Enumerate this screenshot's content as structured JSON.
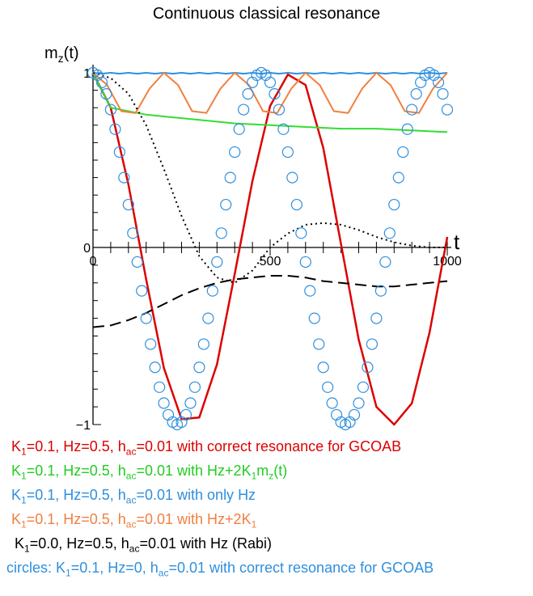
{
  "chart_data": {
    "type": "line",
    "title": "Continuous classical resonance",
    "ylabel": "m_z(t)",
    "xlabel": "t",
    "xlim": [
      0,
      1000
    ],
    "ylim": [
      -1,
      1
    ],
    "xticks": [
      "0",
      "500",
      "1000"
    ],
    "yticks": [
      "1",
      "0",
      "−1"
    ],
    "series": [
      {
        "color": "#dd0000",
        "style": "solid",
        "x": [
          0,
          50,
          100,
          150,
          200,
          250,
          300,
          350,
          400,
          450,
          500,
          550,
          600,
          650,
          700,
          750,
          800,
          850,
          900,
          950,
          1000
        ],
        "y": [
          1.0,
          0.8,
          0.36,
          -0.18,
          -0.68,
          -0.97,
          -0.96,
          -0.66,
          -0.15,
          0.38,
          0.81,
          0.99,
          0.93,
          0.57,
          0.02,
          -0.52,
          -0.9,
          -1.0,
          -0.88,
          -0.48,
          0.06
        ]
      },
      {
        "color": "#33dd33",
        "style": "solid",
        "x": [
          0,
          50,
          100,
          150,
          200,
          300,
          400,
          500,
          600,
          700,
          800,
          900,
          1000
        ],
        "y": [
          1.0,
          0.8,
          0.78,
          0.76,
          0.75,
          0.73,
          0.71,
          0.7,
          0.69,
          0.68,
          0.68,
          0.67,
          0.66
        ]
      },
      {
        "color": "#2f8fdd",
        "style": "solid",
        "x": [
          0,
          25,
          50,
          75,
          100,
          125,
          150,
          175,
          200,
          225,
          250,
          275,
          300,
          325,
          350,
          375,
          400,
          425,
          450,
          475,
          500,
          525,
          550,
          575,
          600,
          625,
          650,
          675,
          700,
          725,
          750,
          775,
          800,
          825,
          850,
          875,
          900,
          925,
          950,
          975,
          1000
        ],
        "y": [
          1.0,
          0.995,
          1.0,
          0.995,
          1.0,
          0.995,
          1.0,
          0.995,
          1.0,
          0.995,
          1.0,
          0.995,
          1.0,
          0.995,
          1.0,
          0.995,
          1.0,
          0.995,
          1.0,
          0.995,
          1.0,
          0.995,
          1.0,
          0.995,
          1.0,
          0.995,
          1.0,
          0.995,
          1.0,
          0.995,
          1.0,
          0.995,
          1.0,
          0.995,
          1.0,
          0.995,
          1.0,
          0.995,
          1.0,
          0.995,
          1.0
        ]
      },
      {
        "color": "#f08040",
        "style": "solid",
        "x": [
          0,
          40,
          80,
          120,
          160,
          200,
          240,
          280,
          320,
          360,
          400,
          440,
          480,
          520,
          560,
          600,
          640,
          680,
          720,
          760,
          800,
          840,
          880,
          920,
          960,
          1000
        ],
        "y": [
          1.0,
          0.93,
          0.78,
          0.77,
          0.91,
          1.0,
          0.93,
          0.78,
          0.77,
          0.91,
          1.0,
          0.93,
          0.78,
          0.77,
          0.91,
          1.0,
          0.93,
          0.78,
          0.77,
          0.91,
          1.0,
          0.93,
          0.78,
          0.77,
          0.91,
          1.0
        ]
      },
      {
        "color": "#000000",
        "style": "dotted",
        "x": [
          0,
          50,
          100,
          150,
          200,
          250,
          300,
          350,
          400,
          450,
          500,
          550,
          600,
          650,
          700,
          750,
          800,
          850,
          900,
          950,
          1000
        ],
        "y": [
          1.0,
          0.97,
          0.88,
          0.7,
          0.45,
          0.18,
          -0.05,
          -0.17,
          -0.2,
          -0.13,
          0.0,
          0.08,
          0.13,
          0.14,
          0.13,
          0.1,
          0.06,
          0.03,
          0.01,
          0.0,
          0.0
        ]
      },
      {
        "color": "#000000",
        "style": "dashed",
        "x": [
          0,
          50,
          100,
          150,
          200,
          250,
          300,
          350,
          400,
          450,
          500,
          550,
          600,
          650,
          700,
          750,
          800,
          850,
          900,
          950,
          1000
        ],
        "y": [
          -0.45,
          -0.44,
          -0.41,
          -0.37,
          -0.32,
          -0.27,
          -0.23,
          -0.2,
          -0.18,
          -0.17,
          -0.16,
          -0.16,
          -0.17,
          -0.19,
          -0.2,
          -0.21,
          -0.22,
          -0.22,
          -0.21,
          -0.2,
          -0.19
        ]
      },
      {
        "color": "#2f8fdd",
        "style": "circles",
        "x": [
          0,
          12.5,
          25,
          37.5,
          50,
          62.5,
          75,
          87.5,
          100,
          112.5,
          125,
          137.5,
          150,
          162.5,
          175,
          187.5,
          200,
          212.5,
          225,
          237.5,
          250,
          262.5,
          275,
          287.5,
          300,
          312.5,
          325,
          337.5,
          350,
          362.5,
          375,
          387.5,
          400,
          412.5,
          425,
          437.5,
          450,
          462.5,
          475,
          487.5,
          500,
          512.5,
          525,
          537.5,
          550,
          562.5,
          575,
          587.5,
          600,
          612.5,
          625,
          637.5,
          650,
          662.5,
          675,
          687.5,
          700,
          712.5,
          725,
          737.5,
          750,
          762.5,
          775,
          787.5,
          800,
          812.5,
          825,
          837.5,
          850,
          862.5,
          875,
          887.5,
          900,
          912.5,
          925,
          937.5,
          950,
          962.5,
          975,
          987.5,
          1000
        ],
        "y": [
          1.0,
          0.986,
          0.945,
          0.879,
          0.789,
          0.677,
          0.546,
          0.4,
          0.245,
          0.082,
          -0.082,
          -0.245,
          -0.4,
          -0.546,
          -0.677,
          -0.789,
          -0.879,
          -0.945,
          -0.986,
          -1.0,
          -0.986,
          -0.945,
          -0.879,
          -0.789,
          -0.677,
          -0.546,
          -0.4,
          -0.245,
          -0.082,
          0.082,
          0.245,
          0.4,
          0.546,
          0.677,
          0.789,
          0.879,
          0.945,
          0.986,
          1.0,
          0.986,
          0.945,
          0.879,
          0.789,
          0.677,
          0.546,
          0.4,
          0.245,
          0.082,
          -0.082,
          -0.245,
          -0.4,
          -0.546,
          -0.677,
          -0.789,
          -0.879,
          -0.945,
          -0.986,
          -1.0,
          -0.986,
          -0.945,
          -0.879,
          -0.789,
          -0.677,
          -0.546,
          -0.4,
          -0.245,
          -0.082,
          0.082,
          0.245,
          0.4,
          0.546,
          0.677,
          0.789,
          0.879,
          0.945,
          0.986,
          1.0,
          0.986,
          0.945,
          0.879,
          0.789
        ]
      }
    ]
  },
  "legend": [
    {
      "color": "#dd0000",
      "parts": [
        [
          "K",
          ""
        ],
        [
          "1",
          "sub"
        ],
        [
          "=0.1, Hz=0.5, h",
          ""
        ],
        [
          "ac",
          "sub"
        ],
        [
          "=0.01 with correct resonance for GCOAB",
          ""
        ]
      ]
    },
    {
      "color": "#22cc22",
      "parts": [
        [
          "K",
          ""
        ],
        [
          "1",
          "sub"
        ],
        [
          "=0.1, Hz=0.5, h",
          ""
        ],
        [
          "ac",
          "sub"
        ],
        [
          "=0.01 with Hz+2K",
          ""
        ],
        [
          "1",
          "sub"
        ],
        [
          "m",
          ""
        ],
        [
          "z",
          "sub"
        ],
        [
          "(t)",
          ""
        ]
      ]
    },
    {
      "color": "#2f8fdd",
      "parts": [
        [
          "K",
          ""
        ],
        [
          "1",
          "sub"
        ],
        [
          "=0.1, Hz=0.5, h",
          ""
        ],
        [
          "ac",
          "sub"
        ],
        [
          "=0.01 with only Hz",
          ""
        ]
      ]
    },
    {
      "color": "#f08040",
      "parts": [
        [
          "K",
          ""
        ],
        [
          "1",
          "sub"
        ],
        [
          "=0.1, Hz=0.5, h",
          ""
        ],
        [
          "ac",
          "sub"
        ],
        [
          "=0.01 with Hz+2K",
          ""
        ],
        [
          "1",
          "sub"
        ]
      ]
    },
    {
      "color": "#000000",
      "parts": [
        [
          "K",
          ""
        ],
        [
          "1",
          "sub"
        ],
        [
          "=0.0, Hz=0.5, h",
          ""
        ],
        [
          "ac",
          "sub"
        ],
        [
          "=0.01 with Hz (Rabi)",
          ""
        ]
      ]
    },
    {
      "color": "#2f8fdd",
      "parts": [
        [
          "circles: K",
          ""
        ],
        [
          "1",
          "sub"
        ],
        [
          "=0.1, Hz=0, h",
          ""
        ],
        [
          "ac",
          "sub"
        ],
        [
          "=0.01 with correct resonance for GCOAB",
          ""
        ]
      ]
    }
  ]
}
